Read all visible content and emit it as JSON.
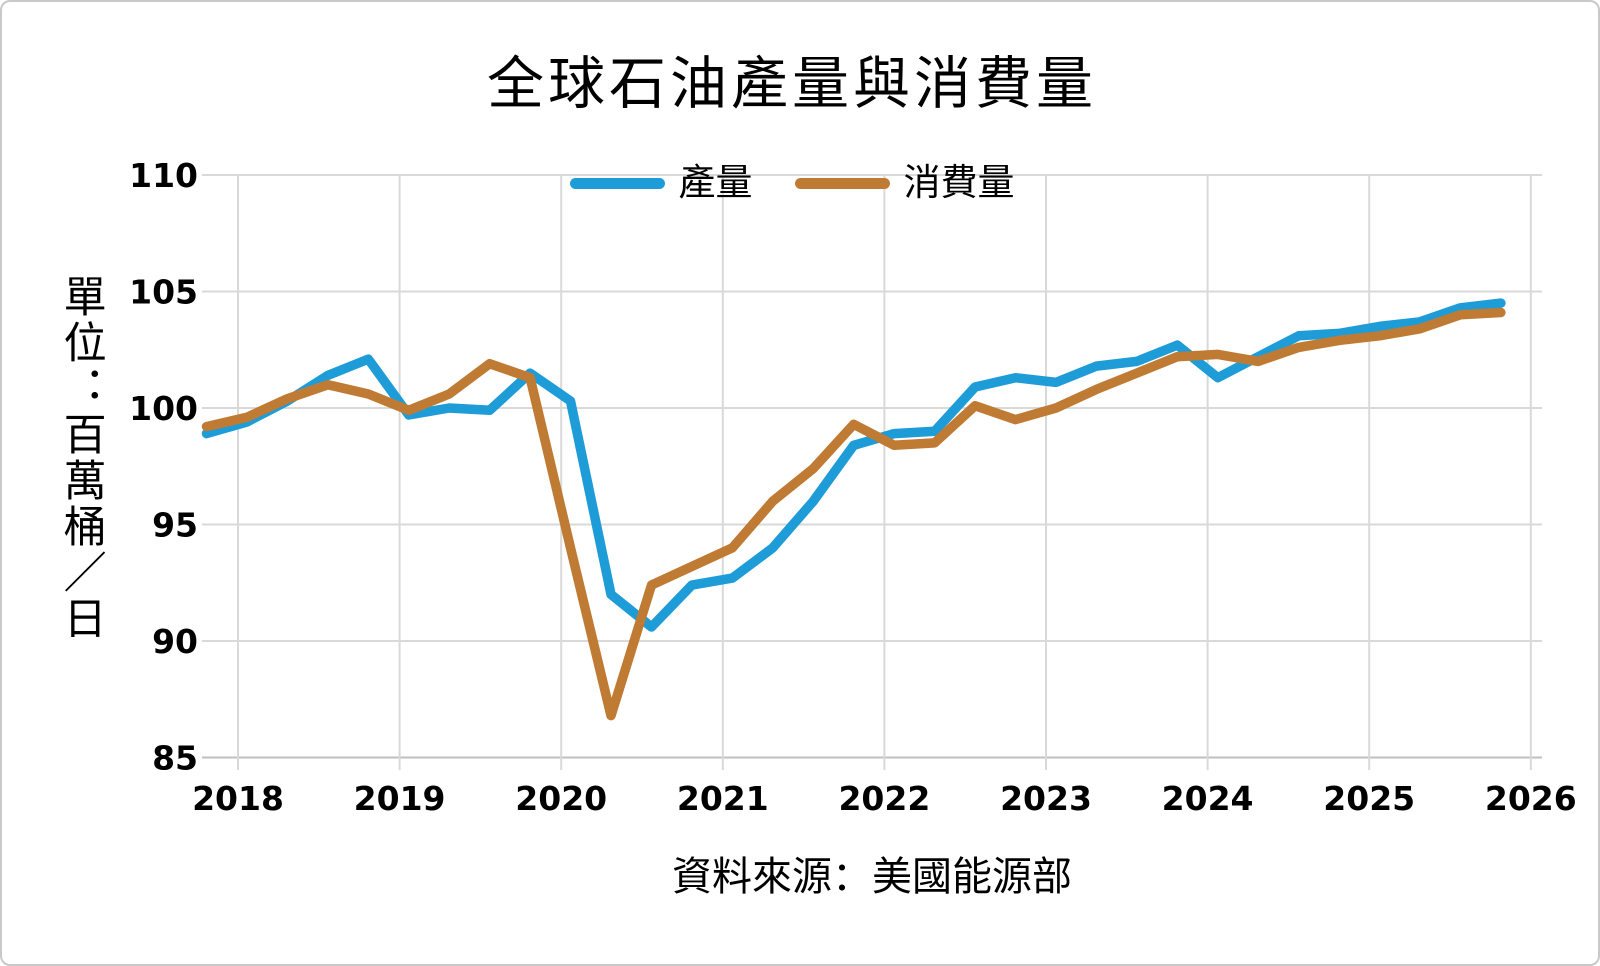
{
  "chart": {
    "title": "全球石油產量與消費量",
    "unit_label": "單位：百萬桶／日",
    "source": "資料來源：美國能源部",
    "colors": {
      "production": "#1E9CD8",
      "consumption": "#BF7B33",
      "gridline": "#D9D9D9",
      "axis": "#BFBFBF",
      "text": "#000000",
      "background": "#FFFFFF"
    }
  },
  "chart_data": {
    "type": "line",
    "title": "全球石油產量與消費量",
    "ylabel": "單位：百萬桶／日",
    "source_note": "資料來源：美國能源部",
    "grid": true,
    "legend_position": "top-center",
    "ylim": [
      85,
      110
    ],
    "y_ticks": [
      110,
      105,
      100,
      95,
      90,
      85
    ],
    "x_tick_labels": [
      "2018",
      "2019",
      "2020",
      "2021",
      "2022",
      "2023",
      "2024",
      "2025",
      "2026"
    ],
    "categories": [
      "2017Q4",
      "2018Q1",
      "2018Q2",
      "2018Q3",
      "2018Q4",
      "2019Q1",
      "2019Q2",
      "2019Q3",
      "2019Q4",
      "2020Q1",
      "2020Q2",
      "2020Q3",
      "2020Q4",
      "2021Q1",
      "2021Q2",
      "2021Q3",
      "2021Q4",
      "2022Q1",
      "2022Q2",
      "2022Q3",
      "2022Q4",
      "2023Q1",
      "2023Q2",
      "2023Q3",
      "2023Q4",
      "2024Q1",
      "2024Q2",
      "2024Q3",
      "2024Q4",
      "2025Q1",
      "2025Q2",
      "2025Q3",
      "2025Q4"
    ],
    "series": [
      {
        "name": "產量",
        "color": "#1E9CD8",
        "values": [
          98.9,
          99.4,
          100.3,
          101.4,
          102.1,
          99.7,
          100.0,
          99.9,
          101.5,
          100.3,
          92.0,
          90.6,
          92.4,
          92.7,
          94.0,
          96.0,
          98.4,
          98.9,
          99.0,
          100.9,
          101.3,
          101.1,
          101.8,
          102.0,
          102.7,
          101.3,
          102.2,
          103.1,
          103.2,
          103.5,
          103.7,
          104.3,
          104.5
        ]
      },
      {
        "name": "消費量",
        "color": "#BF7B33",
        "values": [
          99.2,
          99.6,
          100.4,
          101.0,
          100.6,
          99.9,
          100.6,
          101.9,
          101.3,
          94.0,
          86.8,
          92.4,
          93.2,
          94.0,
          96.0,
          97.4,
          99.3,
          98.4,
          98.5,
          100.1,
          99.5,
          100.0,
          100.8,
          101.5,
          102.2,
          102.3,
          102.0,
          102.6,
          102.9,
          103.1,
          103.4,
          104.0,
          104.1
        ]
      }
    ]
  }
}
